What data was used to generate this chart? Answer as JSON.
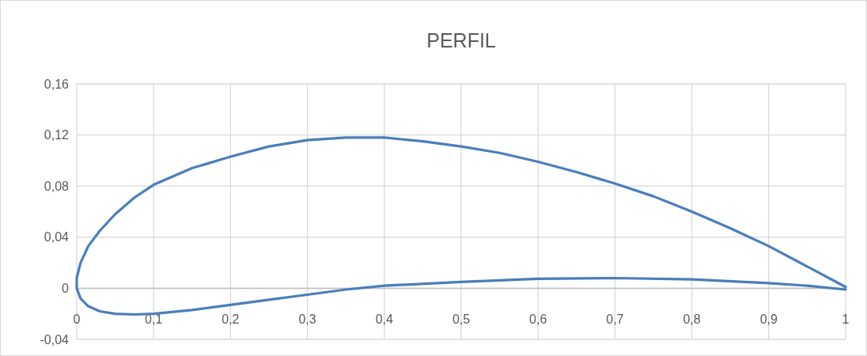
{
  "chart_data": {
    "type": "line",
    "title": "PERFIL",
    "xlim": [
      0,
      1
    ],
    "ylim": [
      -0.04,
      0.16
    ],
    "xticks": [
      0,
      {
        "value": 0.1,
        "label": "0,1"
      },
      {
        "value": 0.2,
        "label": "0,2"
      },
      {
        "value": 0.3,
        "label": "0,3"
      },
      {
        "value": 0.4,
        "label": "0,4"
      },
      {
        "value": 0.5,
        "label": "0,5"
      },
      {
        "value": 0.6,
        "label": "0,6"
      },
      {
        "value": 0.7,
        "label": "0,7"
      },
      {
        "value": 0.8,
        "label": "0,8"
      },
      {
        "value": 0.9,
        "label": "0,9"
      },
      1
    ],
    "yticks": [
      {
        "value": -0.04,
        "label": "-0,04"
      },
      0,
      {
        "value": 0.04,
        "label": "0,04"
      },
      {
        "value": 0.08,
        "label": "0,08"
      },
      {
        "value": 0.12,
        "label": "0,12"
      },
      {
        "value": 0.16,
        "label": "0,16"
      }
    ],
    "grid": true,
    "marker": "none",
    "line_style": "solid",
    "series": [
      {
        "color": "#4a7ebb",
        "x": [
          1,
          0.95,
          0.9,
          0.85,
          0.8,
          0.75,
          0.7,
          0.65,
          0.6,
          0.55,
          0.5,
          0.45,
          0.4,
          0.35,
          0.3,
          0.25,
          0.2,
          0.15,
          0.1,
          0.075,
          0.05,
          0.03,
          0.015,
          0.005,
          0,
          0,
          0.005,
          0.015,
          0.03,
          0.05,
          0.075,
          0.1,
          0.15,
          0.2,
          0.25,
          0.3,
          0.35,
          0.4,
          0.5,
          0.6,
          0.7,
          0.8,
          0.9,
          0.95,
          1
        ],
        "values": [
          0.001,
          0.017,
          0.033,
          0.047,
          0.06,
          0.072,
          0.082,
          0.091,
          0.099,
          0.106,
          0.111,
          0.115,
          0.118,
          0.118,
          0.116,
          0.111,
          0.103,
          0.094,
          0.081,
          0.071,
          0.058,
          0.045,
          0.033,
          0.02,
          0.008,
          0,
          -0.008,
          -0.014,
          -0.018,
          -0.02,
          -0.0205,
          -0.02,
          -0.017,
          -0.013,
          -0.009,
          -0.005,
          -0.001,
          0.002,
          0.005,
          0.0075,
          0.008,
          0.007,
          0.004,
          0.002,
          -0.001
        ]
      }
    ]
  }
}
